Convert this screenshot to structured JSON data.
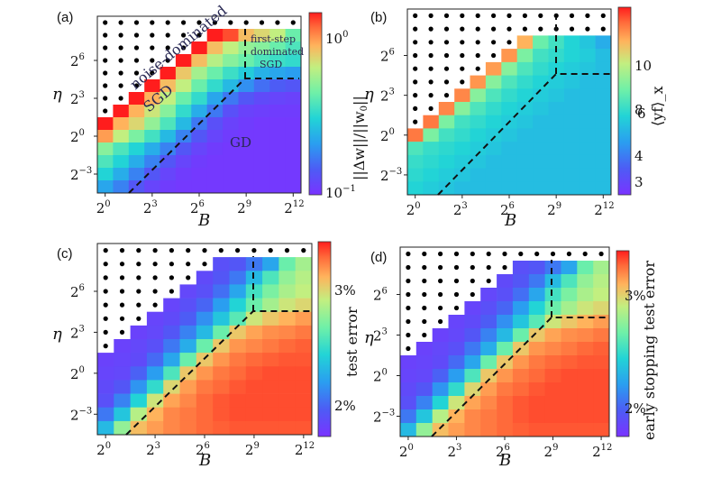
{
  "chart_data": [
    {
      "panel": "(a)",
      "type": "heatmap",
      "xlabel": "B",
      "ylabel": "η",
      "x_ticks": [
        "2^0",
        "2^3",
        "2^6",
        "2^9",
        "2^12"
      ],
      "y_ticks": [
        "2^-3",
        "2^0",
        "2^3",
        "2^6"
      ],
      "colorbar_label": "||Δw||/||w_0||",
      "colorbar_ticks": [
        "10^0",
        "10^-1"
      ],
      "colorbar_scale": "log",
      "annotations": [
        "noise-dominated",
        "SGD",
        "GD",
        "first-step",
        "dominated",
        "SGD"
      ],
      "dashed_boundary": true,
      "values": [
        [
          0.0,
          0.0,
          0.0,
          0.0,
          0.0,
          0.0,
          0.0,
          0.0,
          0.0,
          0.0,
          0.0,
          0.0,
          0.0
        ],
        [
          0.0,
          0.0,
          0.0,
          0.0,
          0.0,
          0.0,
          0.0,
          1.0,
          0.95,
          0.8,
          0.75,
          0.7,
          0.55
        ],
        [
          0.0,
          0.0,
          0.0,
          0.0,
          0.0,
          0.0,
          1.0,
          0.8,
          0.7,
          0.62,
          0.6,
          0.55,
          0.5
        ],
        [
          0.0,
          0.0,
          0.0,
          0.0,
          0.0,
          1.0,
          0.8,
          0.68,
          0.6,
          0.55,
          0.5,
          0.47,
          0.45
        ],
        [
          0.0,
          0.0,
          0.0,
          0.0,
          1.0,
          0.78,
          0.65,
          0.55,
          0.47,
          0.4,
          0.33,
          0.3,
          0.28
        ],
        [
          0.0,
          0.0,
          0.0,
          1.0,
          0.8,
          0.7,
          0.55,
          0.45,
          0.35,
          0.25,
          0.18,
          0.14,
          0.12
        ],
        [
          0.0,
          0.0,
          1.0,
          0.82,
          0.7,
          0.55,
          0.45,
          0.3,
          0.2,
          0.12,
          0.08,
          0.06,
          0.05
        ],
        [
          0.0,
          1.0,
          0.82,
          0.72,
          0.6,
          0.45,
          0.32,
          0.2,
          0.1,
          0.05,
          0.04,
          0.03,
          0.03
        ],
        [
          1.0,
          0.82,
          0.75,
          0.62,
          0.5,
          0.35,
          0.2,
          0.1,
          0.05,
          0.03,
          0.02,
          0.02,
          0.02
        ],
        [
          0.85,
          0.7,
          0.58,
          0.48,
          0.35,
          0.22,
          0.12,
          0.06,
          0.03,
          0.02,
          0.02,
          0.02,
          0.02
        ],
        [
          0.6,
          0.5,
          0.42,
          0.32,
          0.22,
          0.12,
          0.06,
          0.03,
          0.02,
          0.02,
          0.02,
          0.02,
          0.02
        ],
        [
          0.5,
          0.42,
          0.32,
          0.22,
          0.12,
          0.06,
          0.03,
          0.02,
          0.02,
          0.02,
          0.02,
          0.02,
          0.02
        ],
        [
          0.42,
          0.32,
          0.22,
          0.12,
          0.06,
          0.03,
          0.02,
          0.02,
          0.02,
          0.02,
          0.02,
          0.02,
          0.02
        ],
        [
          0.3,
          0.22,
          0.12,
          0.06,
          0.03,
          0.02,
          0.02,
          0.02,
          0.02,
          0.02,
          0.02,
          0.02,
          0.02
        ]
      ]
    },
    {
      "panel": "(b)",
      "type": "heatmap",
      "xlabel": "B",
      "ylabel": "η",
      "x_ticks": [
        "2^0",
        "2^3",
        "2^6",
        "2^9",
        "2^12"
      ],
      "y_ticks": [
        "2^-3",
        "2^0",
        "2^3",
        "2^6"
      ],
      "colorbar_label": "⟨yf⟩_x",
      "colorbar_ticks": [
        "10",
        "8",
        "6",
        "4",
        "3"
      ],
      "dashed_boundary": true,
      "values": [
        [
          0.0,
          0.0,
          0.0,
          0.0,
          0.0,
          0.0,
          0.0,
          0.0,
          0.0,
          0.0,
          0.0,
          0.0,
          0.0
        ],
        [
          0.0,
          0.0,
          0.0,
          0.0,
          0.0,
          0.0,
          0.0,
          0.0,
          0.0,
          0.0,
          0.0,
          0.0,
          0.0
        ],
        [
          0.0,
          0.0,
          0.0,
          0.0,
          0.0,
          0.0,
          0.0,
          0.82,
          0.55,
          0.48,
          0.42,
          0.38,
          0.32
        ],
        [
          0.0,
          0.0,
          0.0,
          0.0,
          0.0,
          0.0,
          0.86,
          0.58,
          0.48,
          0.45,
          0.42,
          0.4,
          0.36
        ],
        [
          0.0,
          0.0,
          0.0,
          0.0,
          0.0,
          0.85,
          0.6,
          0.5,
          0.45,
          0.42,
          0.4,
          0.38,
          0.36
        ],
        [
          0.0,
          0.0,
          0.0,
          0.0,
          0.86,
          0.6,
          0.5,
          0.45,
          0.42,
          0.4,
          0.38,
          0.36,
          0.36
        ],
        [
          0.0,
          0.0,
          0.0,
          0.88,
          0.6,
          0.5,
          0.45,
          0.42,
          0.4,
          0.38,
          0.36,
          0.36,
          0.36
        ],
        [
          0.0,
          0.0,
          0.88,
          0.6,
          0.5,
          0.45,
          0.42,
          0.4,
          0.38,
          0.36,
          0.36,
          0.36,
          0.36
        ],
        [
          0.0,
          0.9,
          0.58,
          0.48,
          0.45,
          0.42,
          0.4,
          0.38,
          0.36,
          0.36,
          0.36,
          0.36,
          0.36
        ],
        [
          0.9,
          0.58,
          0.48,
          0.45,
          0.42,
          0.4,
          0.38,
          0.36,
          0.36,
          0.36,
          0.36,
          0.36,
          0.36
        ],
        [
          0.5,
          0.46,
          0.44,
          0.42,
          0.4,
          0.38,
          0.36,
          0.36,
          0.36,
          0.36,
          0.36,
          0.36,
          0.36
        ],
        [
          0.46,
          0.44,
          0.42,
          0.4,
          0.38,
          0.36,
          0.36,
          0.36,
          0.36,
          0.36,
          0.36,
          0.36,
          0.36
        ],
        [
          0.44,
          0.42,
          0.4,
          0.38,
          0.36,
          0.36,
          0.36,
          0.36,
          0.36,
          0.36,
          0.36,
          0.36,
          0.36
        ],
        [
          0.42,
          0.4,
          0.38,
          0.36,
          0.36,
          0.36,
          0.36,
          0.36,
          0.36,
          0.36,
          0.36,
          0.36,
          0.36
        ]
      ]
    },
    {
      "panel": "(c)",
      "type": "heatmap",
      "xlabel": "B",
      "ylabel": "η",
      "x_ticks": [
        "2^0",
        "2^3",
        "2^6",
        "2^9",
        "2^12"
      ],
      "y_ticks": [
        "2^-3",
        "2^0",
        "2^3",
        "2^6"
      ],
      "colorbar_label": "test error",
      "colorbar_ticks": [
        "3%",
        "2%"
      ],
      "dashed_boundary": true,
      "values": [
        [
          0.0,
          0.0,
          0.0,
          0.0,
          0.0,
          0.0,
          0.0,
          0.0,
          0.0,
          0.0,
          0.0,
          0.0,
          0.0
        ],
        [
          0.0,
          0.0,
          0.0,
          0.0,
          0.0,
          0.0,
          0.0,
          0.1,
          0.12,
          0.2,
          0.3,
          0.55,
          0.65
        ],
        [
          0.0,
          0.0,
          0.0,
          0.0,
          0.0,
          0.0,
          0.08,
          0.12,
          0.2,
          0.35,
          0.5,
          0.62,
          0.68
        ],
        [
          0.0,
          0.0,
          0.0,
          0.0,
          0.0,
          0.07,
          0.1,
          0.18,
          0.3,
          0.48,
          0.58,
          0.66,
          0.7
        ],
        [
          0.0,
          0.0,
          0.0,
          0.0,
          0.06,
          0.1,
          0.16,
          0.28,
          0.42,
          0.55,
          0.65,
          0.72,
          0.75
        ],
        [
          0.0,
          0.0,
          0.0,
          0.06,
          0.08,
          0.14,
          0.25,
          0.38,
          0.52,
          0.72,
          0.78,
          0.82,
          0.85
        ],
        [
          0.0,
          0.0,
          0.05,
          0.07,
          0.12,
          0.22,
          0.35,
          0.55,
          0.78,
          0.84,
          0.87,
          0.88,
          0.9
        ],
        [
          0.0,
          0.05,
          0.07,
          0.1,
          0.2,
          0.32,
          0.55,
          0.78,
          0.86,
          0.88,
          0.9,
          0.92,
          0.93
        ],
        [
          0.05,
          0.06,
          0.08,
          0.17,
          0.3,
          0.55,
          0.78,
          0.86,
          0.9,
          0.92,
          0.93,
          0.94,
          0.94
        ],
        [
          0.06,
          0.07,
          0.15,
          0.28,
          0.5,
          0.78,
          0.86,
          0.9,
          0.92,
          0.94,
          0.95,
          0.95,
          0.95
        ],
        [
          0.08,
          0.12,
          0.26,
          0.45,
          0.75,
          0.85,
          0.9,
          0.92,
          0.94,
          0.95,
          0.95,
          0.95,
          0.95
        ],
        [
          0.1,
          0.22,
          0.42,
          0.72,
          0.84,
          0.88,
          0.92,
          0.94,
          0.95,
          0.95,
          0.95,
          0.95,
          0.95
        ],
        [
          0.2,
          0.38,
          0.68,
          0.82,
          0.88,
          0.9,
          0.92,
          0.94,
          0.95,
          0.95,
          0.95,
          0.95,
          0.95
        ],
        [
          0.35,
          0.62,
          0.8,
          0.85,
          0.88,
          0.9,
          0.92,
          0.93,
          0.94,
          0.94,
          0.94,
          0.94,
          0.94
        ]
      ]
    },
    {
      "panel": "(d)",
      "type": "heatmap",
      "xlabel": "B",
      "ylabel": "η",
      "x_ticks": [
        "2^0",
        "2^3",
        "2^6",
        "2^9",
        "2^12"
      ],
      "y_ticks": [
        "2^-3",
        "2^0",
        "2^3",
        "2^6"
      ],
      "colorbar_label": "early stopping test error",
      "colorbar_ticks": [
        "3%",
        "2%"
      ],
      "dashed_boundary": true,
      "values": [
        [
          0.0,
          0.0,
          0.0,
          0.0,
          0.0,
          0.0,
          0.0,
          0.0,
          0.0,
          0.0,
          0.0,
          0.0,
          0.0
        ],
        [
          0.0,
          0.0,
          0.0,
          0.0,
          0.0,
          0.0,
          0.0,
          0.1,
          0.12,
          0.2,
          0.3,
          0.55,
          0.65
        ],
        [
          0.0,
          0.0,
          0.0,
          0.0,
          0.0,
          0.0,
          0.08,
          0.12,
          0.2,
          0.35,
          0.5,
          0.62,
          0.68
        ],
        [
          0.0,
          0.0,
          0.0,
          0.0,
          0.0,
          0.07,
          0.1,
          0.18,
          0.3,
          0.48,
          0.58,
          0.66,
          0.7
        ],
        [
          0.0,
          0.0,
          0.0,
          0.0,
          0.06,
          0.1,
          0.16,
          0.28,
          0.42,
          0.55,
          0.65,
          0.72,
          0.75
        ],
        [
          0.0,
          0.0,
          0.0,
          0.06,
          0.08,
          0.14,
          0.25,
          0.38,
          0.52,
          0.72,
          0.78,
          0.82,
          0.85
        ],
        [
          0.0,
          0.0,
          0.05,
          0.07,
          0.12,
          0.22,
          0.35,
          0.55,
          0.78,
          0.84,
          0.87,
          0.88,
          0.9
        ],
        [
          0.0,
          0.05,
          0.07,
          0.1,
          0.2,
          0.32,
          0.55,
          0.78,
          0.86,
          0.88,
          0.9,
          0.92,
          0.93
        ],
        [
          0.05,
          0.06,
          0.08,
          0.17,
          0.3,
          0.55,
          0.78,
          0.86,
          0.9,
          0.92,
          0.93,
          0.94,
          0.94
        ],
        [
          0.06,
          0.07,
          0.15,
          0.28,
          0.5,
          0.78,
          0.86,
          0.9,
          0.92,
          0.94,
          0.95,
          0.95,
          0.95
        ],
        [
          0.08,
          0.12,
          0.26,
          0.45,
          0.75,
          0.85,
          0.9,
          0.92,
          0.94,
          0.95,
          0.95,
          0.95,
          0.95
        ],
        [
          0.1,
          0.22,
          0.42,
          0.72,
          0.84,
          0.88,
          0.92,
          0.94,
          0.95,
          0.95,
          0.95,
          0.95,
          0.95
        ],
        [
          0.2,
          0.38,
          0.68,
          0.82,
          0.88,
          0.9,
          0.92,
          0.94,
          0.95,
          0.95,
          0.95,
          0.95,
          0.95
        ],
        [
          0.35,
          0.62,
          0.8,
          0.85,
          0.88,
          0.9,
          0.92,
          0.93,
          0.94,
          0.94,
          0.94,
          0.94,
          0.94
        ]
      ]
    }
  ]
}
